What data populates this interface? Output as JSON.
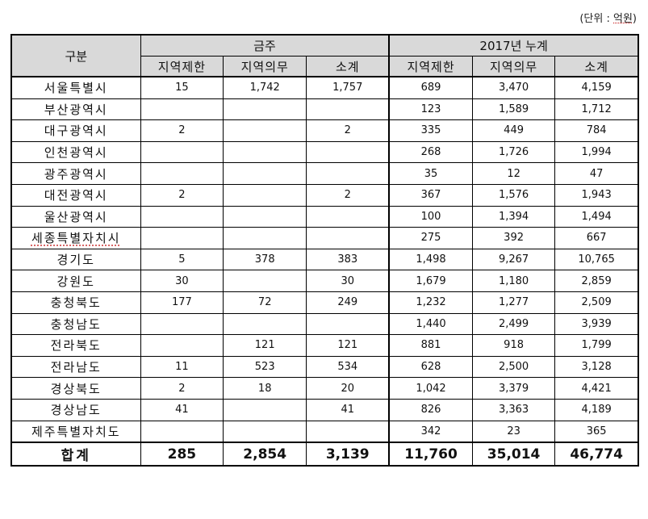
{
  "unit_note": {
    "prefix": "(단위 : ",
    "unit": "억원",
    "suffix": ")"
  },
  "header": {
    "category": "구분",
    "group1": "금주",
    "group2": "2017년 누계",
    "sub": [
      "지역제한",
      "지역의무",
      "소계",
      "지역제한",
      "지역의무",
      "소계"
    ]
  },
  "rows": [
    {
      "region": "서울특별시",
      "v": [
        "15",
        "1,742",
        "1,757",
        "689",
        "3,470",
        "4,159"
      ]
    },
    {
      "region": "부산광역시",
      "v": [
        "",
        "",
        "",
        "123",
        "1,589",
        "1,712"
      ]
    },
    {
      "region": "대구광역시",
      "v": [
        "2",
        "",
        "2",
        "335",
        "449",
        "784"
      ]
    },
    {
      "region": "인천광역시",
      "v": [
        "",
        "",
        "",
        "268",
        "1,726",
        "1,994"
      ]
    },
    {
      "region": "광주광역시",
      "v": [
        "",
        "",
        "",
        "35",
        "12",
        "47"
      ]
    },
    {
      "region": "대전광역시",
      "v": [
        "2",
        "",
        "2",
        "367",
        "1,576",
        "1,943"
      ]
    },
    {
      "region": "울산광역시",
      "v": [
        "",
        "",
        "",
        "100",
        "1,394",
        "1,494"
      ]
    },
    {
      "region": "세종특별자치시",
      "v": [
        "",
        "",
        "",
        "275",
        "392",
        "667"
      ]
    },
    {
      "region": "경기도",
      "v": [
        "5",
        "378",
        "383",
        "1,498",
        "9,267",
        "10,765"
      ]
    },
    {
      "region": "강원도",
      "v": [
        "30",
        "",
        "30",
        "1,679",
        "1,180",
        "2,859"
      ]
    },
    {
      "region": "충청북도",
      "v": [
        "177",
        "72",
        "249",
        "1,232",
        "1,277",
        "2,509"
      ]
    },
    {
      "region": "충청남도",
      "v": [
        "",
        "",
        "",
        "1,440",
        "2,499",
        "3,939"
      ]
    },
    {
      "region": "전라북도",
      "v": [
        "",
        "121",
        "121",
        "881",
        "918",
        "1,799"
      ]
    },
    {
      "region": "전라남도",
      "v": [
        "11",
        "523",
        "534",
        "628",
        "2,500",
        "3,128"
      ]
    },
    {
      "region": "경상북도",
      "v": [
        "2",
        "18",
        "20",
        "1,042",
        "3,379",
        "4,421"
      ]
    },
    {
      "region": "경상남도",
      "v": [
        "41",
        "",
        "41",
        "826",
        "3,363",
        "4,189"
      ]
    },
    {
      "region": "제주특별자치도",
      "v": [
        "",
        "",
        "",
        "342",
        "23",
        "365"
      ]
    }
  ],
  "total": {
    "label": "합계",
    "v": [
      "285",
      "2,854",
      "3,139",
      "11,760",
      "35,014",
      "46,774"
    ]
  }
}
